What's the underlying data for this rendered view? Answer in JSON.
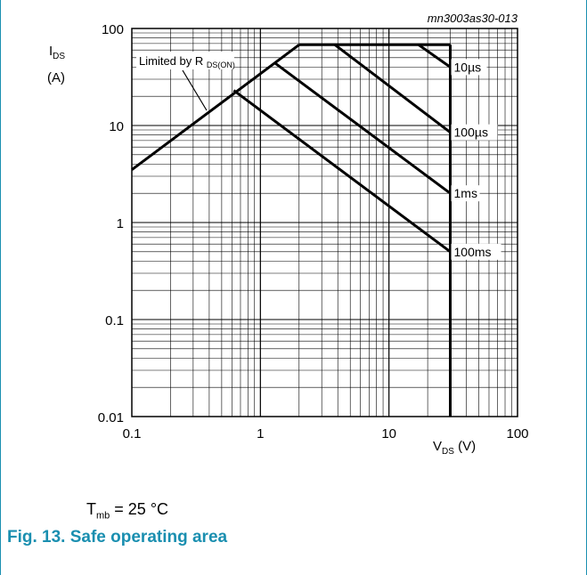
{
  "chart_data": {
    "type": "line",
    "subtype": "safe-operating-area",
    "ref_id": "mn3003as30-013",
    "x_scale": "log",
    "y_scale": "log",
    "xlim": [
      0.1,
      100
    ],
    "ylim": [
      0.01,
      100
    ],
    "x_ticks": [
      "0.1",
      "1",
      "10",
      "100"
    ],
    "y_ticks": [
      "0.01",
      "0.1",
      "1",
      "10",
      "100"
    ],
    "x_tick_values": [
      0.1,
      1,
      10,
      100
    ],
    "y_tick_values": [
      0.01,
      0.1,
      1,
      10,
      100
    ],
    "xlabel": {
      "main": "V",
      "sub": "DS",
      "unit": " (V)"
    },
    "ylabel": {
      "main": "I",
      "sub": "DS",
      "unit": "(A)"
    },
    "grid": true,
    "annotation": {
      "text": "Limited by R",
      "sub": "DS(ON)"
    },
    "limit_lines": {
      "rds_on": {
        "x": [
          0.1,
          2
        ],
        "y": [
          3.5,
          68
        ]
      },
      "current_limit": {
        "x": [
          2,
          30
        ],
        "y": [
          68,
          68
        ]
      },
      "voltage_limit": {
        "x": [
          30,
          30
        ],
        "y": [
          68,
          0.01
        ]
      }
    },
    "series": [
      {
        "name": "10µs",
        "x": [
          17,
          30
        ],
        "y": [
          68,
          40
        ]
      },
      {
        "name": "100µs",
        "x": [
          3.8,
          30
        ],
        "y": [
          68,
          8.5
        ]
      },
      {
        "name": "1ms",
        "x": [
          1.3,
          30
        ],
        "y": [
          44,
          2
        ]
      },
      {
        "name": "100ms",
        "x": [
          0.62,
          30
        ],
        "y": [
          23,
          0.5
        ]
      }
    ]
  },
  "conditions": {
    "symbol": "T",
    "sub": "mb",
    "rest": " = 25 °C"
  },
  "figure": {
    "title": "Fig. 13. Safe operating area"
  }
}
